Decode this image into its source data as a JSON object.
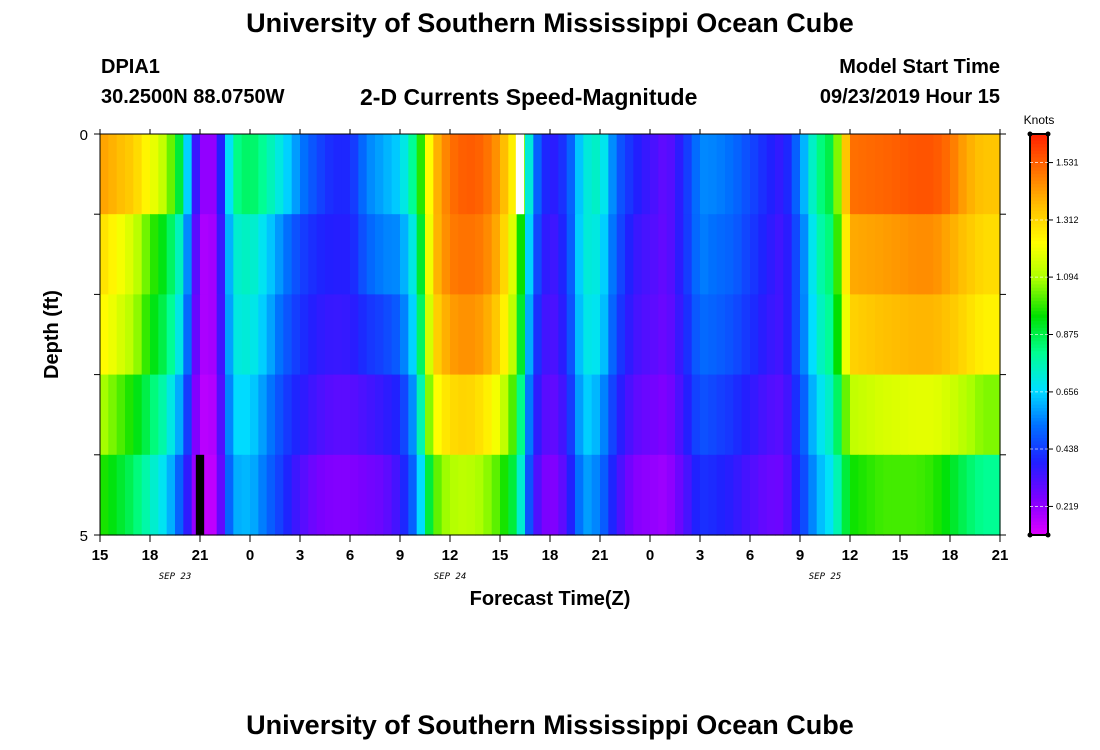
{
  "header": {
    "title_top": "University of Southern Mississippi Ocean Cube",
    "title_bottom": "University of Southern Mississippi Ocean Cube",
    "station_id": "DPIA1",
    "station_coords": "30.2500N 88.0750W",
    "chart_title": "2-D Currents Speed-Magnitude",
    "model_start_label": "Model Start Time",
    "model_start_value": "09/23/2019 Hour 15"
  },
  "colors": {
    "colormap": [
      "#e000ff",
      "#7d00ff",
      "#2020ff",
      "#0070ff",
      "#00e0ff",
      "#00ff90",
      "#00e000",
      "#a8ff00",
      "#ffff00",
      "#ffc000",
      "#ff7000",
      "#ff2000"
    ],
    "no_data": "#ffffff",
    "masked": "#000000"
  },
  "chart_data": {
    "type": "heatmap",
    "xlabel": "Forecast Time(Z)",
    "ylabel": "Depth (ft)",
    "x_tick_labels": [
      "15",
      "18",
      "21",
      "0",
      "3",
      "6",
      "9",
      "12",
      "15",
      "18",
      "21",
      "0",
      "3",
      "6",
      "9",
      "12",
      "15",
      "18",
      "21"
    ],
    "x_start_hour": 15,
    "x_end_hour": 69,
    "day_labels": [
      {
        "label": "SEP 23",
        "hour": 19.5
      },
      {
        "label": "SEP 24",
        "hour": 36
      },
      {
        "label": "SEP 25",
        "hour": 58.5
      }
    ],
    "y_tick_labels": [
      "0",
      "5"
    ],
    "ylim": [
      0,
      5
    ],
    "depth_rows": 5,
    "colorbar": {
      "unit": "Knots",
      "min": 0.11,
      "max": 1.64,
      "ticks": [
        0.219,
        0.438,
        0.656,
        0.875,
        1.094,
        1.312,
        1.531
      ],
      "tick_labels": [
        "0.219",
        "0.438",
        "0.656",
        "0.875",
        "1.094",
        "1.312",
        "1.531"
      ]
    },
    "series": [
      {
        "depth_band": 0,
        "keyframes": [
          [
            15,
            1.42
          ],
          [
            17,
            1.33
          ],
          [
            19,
            1.1
          ],
          [
            20,
            0.82
          ],
          [
            20.5,
            0.48
          ],
          [
            21,
            0.22
          ],
          [
            22,
            0.22
          ],
          [
            22.5,
            0.55
          ],
          [
            23,
            0.8
          ],
          [
            24,
            0.86
          ],
          [
            25,
            0.78
          ],
          [
            26,
            0.68
          ],
          [
            27,
            0.55
          ],
          [
            28,
            0.46
          ],
          [
            29,
            0.4
          ],
          [
            30,
            0.4
          ],
          [
            31,
            0.55
          ],
          [
            32,
            0.6
          ],
          [
            33,
            0.65
          ],
          [
            34,
            0.85
          ],
          [
            35,
            1.35
          ],
          [
            36,
            1.5
          ],
          [
            37,
            1.54
          ],
          [
            38,
            1.52
          ],
          [
            39,
            1.42
          ],
          [
            40,
            1.2
          ],
          [
            41,
            0.55
          ],
          [
            42,
            0.35
          ],
          [
            43,
            0.44
          ],
          [
            44,
            0.7
          ],
          [
            45,
            0.75
          ],
          [
            46,
            0.5
          ],
          [
            47,
            0.4
          ],
          [
            49,
            0.28
          ],
          [
            50,
            0.4
          ],
          [
            51,
            0.56
          ],
          [
            52,
            0.55
          ],
          [
            53,
            0.52
          ],
          [
            54,
            0.46
          ],
          [
            55,
            0.4
          ],
          [
            56,
            0.35
          ],
          [
            57,
            0.55
          ],
          [
            58,
            0.8
          ],
          [
            59,
            0.9
          ],
          [
            60,
            1.5
          ],
          [
            62,
            1.52
          ],
          [
            64,
            1.55
          ],
          [
            65,
            1.55
          ],
          [
            66,
            1.5
          ],
          [
            67,
            1.4
          ],
          [
            68,
            1.35
          ],
          [
            69,
            1.35
          ]
        ]
      },
      {
        "depth_band": 1,
        "keyframes": [
          [
            15,
            1.3
          ],
          [
            17,
            1.15
          ],
          [
            18,
            1.0
          ],
          [
            19,
            0.9
          ],
          [
            20,
            0.7
          ],
          [
            20.5,
            0.42
          ],
          [
            21,
            0.18
          ],
          [
            22,
            0.2
          ],
          [
            22.5,
            0.5
          ],
          [
            23,
            0.72
          ],
          [
            24,
            0.75
          ],
          [
            25,
            0.66
          ],
          [
            26,
            0.55
          ],
          [
            27,
            0.45
          ],
          [
            28,
            0.4
          ],
          [
            29,
            0.38
          ],
          [
            30,
            0.38
          ],
          [
            31,
            0.5
          ],
          [
            32,
            0.55
          ],
          [
            33,
            0.56
          ],
          [
            34,
            0.75
          ],
          [
            35,
            1.35
          ],
          [
            36,
            1.48
          ],
          [
            37,
            1.5
          ],
          [
            38,
            1.48
          ],
          [
            39,
            1.38
          ],
          [
            40,
            1.1
          ],
          [
            41,
            0.5
          ],
          [
            42,
            0.32
          ],
          [
            43,
            0.42
          ],
          [
            44,
            0.72
          ],
          [
            45,
            0.7
          ],
          [
            46,
            0.48
          ],
          [
            47,
            0.36
          ],
          [
            49,
            0.28
          ],
          [
            50,
            0.4
          ],
          [
            51,
            0.55
          ],
          [
            52,
            0.52
          ],
          [
            53,
            0.5
          ],
          [
            54,
            0.44
          ],
          [
            55,
            0.38
          ],
          [
            56,
            0.33
          ],
          [
            57,
            0.5
          ],
          [
            58,
            0.75
          ],
          [
            59,
            0.85
          ],
          [
            60,
            1.4
          ],
          [
            62,
            1.42
          ],
          [
            64,
            1.45
          ],
          [
            65,
            1.45
          ],
          [
            66,
            1.4
          ],
          [
            67,
            1.35
          ],
          [
            68,
            1.3
          ],
          [
            69,
            1.3
          ]
        ]
      },
      {
        "depth_band": 2,
        "keyframes": [
          [
            15,
            1.25
          ],
          [
            17,
            1.1
          ],
          [
            18,
            0.95
          ],
          [
            19,
            0.85
          ],
          [
            20,
            0.65
          ],
          [
            20.5,
            0.38
          ],
          [
            21,
            0.18
          ],
          [
            22,
            0.2
          ],
          [
            22.5,
            0.48
          ],
          [
            23,
            0.7
          ],
          [
            24,
            0.72
          ],
          [
            25,
            0.62
          ],
          [
            26,
            0.5
          ],
          [
            27,
            0.42
          ],
          [
            28,
            0.37
          ],
          [
            29,
            0.35
          ],
          [
            30,
            0.36
          ],
          [
            31,
            0.42
          ],
          [
            32,
            0.45
          ],
          [
            33,
            0.5
          ],
          [
            34,
            0.7
          ],
          [
            35,
            1.3
          ],
          [
            36,
            1.42
          ],
          [
            37,
            1.45
          ],
          [
            38,
            1.42
          ],
          [
            39,
            1.32
          ],
          [
            40,
            1.05
          ],
          [
            41,
            0.45
          ],
          [
            42,
            0.3
          ],
          [
            43,
            0.4
          ],
          [
            44,
            0.7
          ],
          [
            45,
            0.68
          ],
          [
            46,
            0.45
          ],
          [
            47,
            0.34
          ],
          [
            49,
            0.27
          ],
          [
            50,
            0.38
          ],
          [
            51,
            0.52
          ],
          [
            52,
            0.5
          ],
          [
            53,
            0.47
          ],
          [
            54,
            0.42
          ],
          [
            55,
            0.36
          ],
          [
            56,
            0.33
          ],
          [
            57,
            0.5
          ],
          [
            58,
            0.72
          ],
          [
            59,
            0.82
          ],
          [
            60,
            1.32
          ],
          [
            62,
            1.36
          ],
          [
            64,
            1.38
          ],
          [
            65,
            1.38
          ],
          [
            66,
            1.35
          ],
          [
            67,
            1.3
          ],
          [
            68,
            1.25
          ],
          [
            69,
            1.25
          ]
        ]
      },
      {
        "depth_band": 3,
        "keyframes": [
          [
            15,
            1.1
          ],
          [
            17,
            0.95
          ],
          [
            18,
            0.85
          ],
          [
            19,
            0.75
          ],
          [
            20,
            0.55
          ],
          [
            20.5,
            0.32
          ],
          [
            21,
            0.16
          ],
          [
            22,
            0.18
          ],
          [
            22.5,
            0.45
          ],
          [
            23,
            0.66
          ],
          [
            24,
            0.66
          ],
          [
            25,
            0.56
          ],
          [
            26,
            0.45
          ],
          [
            27,
            0.38
          ],
          [
            28,
            0.33
          ],
          [
            29,
            0.3
          ],
          [
            30,
            0.3
          ],
          [
            31,
            0.33
          ],
          [
            32,
            0.36
          ],
          [
            33,
            0.4
          ],
          [
            34,
            0.62
          ],
          [
            35,
            1.2
          ],
          [
            36,
            1.3
          ],
          [
            37,
            1.32
          ],
          [
            38,
            1.28
          ],
          [
            39,
            1.18
          ],
          [
            40,
            0.95
          ],
          [
            41,
            0.4
          ],
          [
            42,
            0.27
          ],
          [
            43,
            0.36
          ],
          [
            44,
            0.66
          ],
          [
            45,
            0.6
          ],
          [
            46,
            0.4
          ],
          [
            47,
            0.3
          ],
          [
            49,
            0.24
          ],
          [
            50,
            0.35
          ],
          [
            51,
            0.48
          ],
          [
            52,
            0.45
          ],
          [
            53,
            0.42
          ],
          [
            54,
            0.37
          ],
          [
            55,
            0.32
          ],
          [
            56,
            0.3
          ],
          [
            57,
            0.45
          ],
          [
            58,
            0.66
          ],
          [
            59,
            0.76
          ],
          [
            60,
            1.12
          ],
          [
            62,
            1.16
          ],
          [
            64,
            1.18
          ],
          [
            65,
            1.18
          ],
          [
            66,
            1.15
          ],
          [
            67,
            1.1
          ],
          [
            68,
            1.05
          ],
          [
            69,
            1.05
          ]
        ]
      },
      {
        "depth_band": 4,
        "keyframes": [
          [
            15,
            0.98
          ],
          [
            17,
            0.85
          ],
          [
            18,
            0.75
          ],
          [
            19,
            0.66
          ],
          [
            20,
            0.45
          ],
          [
            20.5,
            0.28
          ],
          [
            21,
            0.15
          ],
          [
            22,
            0.16
          ],
          [
            22.5,
            0.42
          ],
          [
            23,
            0.6
          ],
          [
            24,
            0.62
          ],
          [
            25,
            0.52
          ],
          [
            26,
            0.42
          ],
          [
            27,
            0.32
          ],
          [
            28,
            0.26
          ],
          [
            29,
            0.24
          ],
          [
            30,
            0.24
          ],
          [
            31,
            0.26
          ],
          [
            32,
            0.28
          ],
          [
            33,
            0.35
          ],
          [
            34,
            0.55
          ],
          [
            35,
            1.0
          ],
          [
            36,
            1.1
          ],
          [
            37,
            1.12
          ],
          [
            38,
            1.08
          ],
          [
            39,
            1.0
          ],
          [
            40,
            0.85
          ],
          [
            41,
            0.35
          ],
          [
            42,
            0.22
          ],
          [
            43,
            0.32
          ],
          [
            44,
            0.6
          ],
          [
            45,
            0.54
          ],
          [
            46,
            0.35
          ],
          [
            47,
            0.24
          ],
          [
            49,
            0.2
          ],
          [
            50,
            0.3
          ],
          [
            51,
            0.42
          ],
          [
            52,
            0.4
          ],
          [
            53,
            0.37
          ],
          [
            54,
            0.32
          ],
          [
            55,
            0.28
          ],
          [
            56,
            0.27
          ],
          [
            57,
            0.42
          ],
          [
            58,
            0.6
          ],
          [
            59,
            0.7
          ],
          [
            60,
            0.95
          ],
          [
            62,
            1.0
          ],
          [
            64,
            1.0
          ],
          [
            65,
            0.98
          ],
          [
            66,
            0.92
          ],
          [
            67,
            0.85
          ],
          [
            68,
            0.8
          ],
          [
            69,
            0.8
          ]
        ]
      }
    ],
    "special_cells": [
      {
        "depth_band": 0,
        "hour": 40.2,
        "kind": "no_data"
      },
      {
        "depth_band": 4,
        "hour": 21.0,
        "kind": "masked"
      }
    ]
  }
}
